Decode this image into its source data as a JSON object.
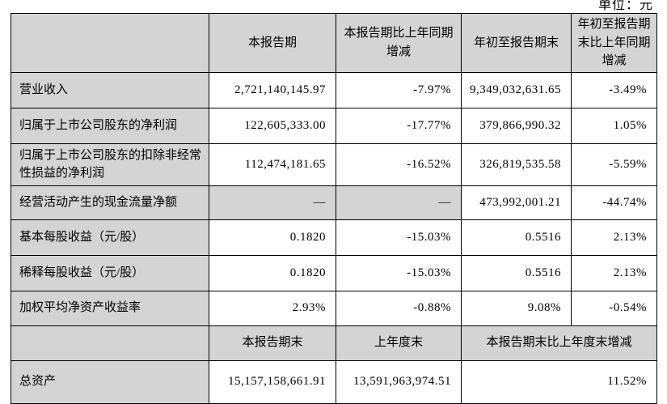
{
  "meta": {
    "unit_label": "单位：元"
  },
  "table": {
    "section1": {
      "headers": [
        "",
        "本报告期",
        "本报告期比上年同期增减",
        "年初至报告期末",
        "年初至报告期末比上年同期增减"
      ],
      "rows": [
        {
          "label": "营业收入",
          "cells": [
            "2,721,140,145.97",
            "-7.97%",
            "9,349,032,631.65",
            "-3.49%"
          ],
          "gray": []
        },
        {
          "label": "归属于上市公司股东的净利润",
          "cells": [
            "122,605,333.00",
            "-17.77%",
            "379,866,990.32",
            "1.05%"
          ],
          "gray": []
        },
        {
          "label": "归属于上市公司股东的扣除非经常性损益的净利润",
          "cells": [
            "112,474,181.65",
            "-16.52%",
            "326,819,535.58",
            "-5.59%"
          ],
          "gray": []
        },
        {
          "label": "经营活动产生的现金流量净额",
          "cells": [
            "—",
            "—",
            "473,992,001.21",
            "-44.74%"
          ],
          "gray": [
            0,
            1
          ]
        },
        {
          "label": "基本每股收益（元/股）",
          "cells": [
            "0.1820",
            "-15.03%",
            "0.5516",
            "2.13%"
          ],
          "gray": []
        },
        {
          "label": "稀释每股收益（元/股）",
          "cells": [
            "0.1820",
            "-15.03%",
            "0.5516",
            "2.13%"
          ],
          "gray": []
        },
        {
          "label": "加权平均净资产收益率",
          "cells": [
            "2.93%",
            "-0.88%",
            "9.08%",
            "-0.54%"
          ],
          "gray": []
        }
      ]
    },
    "section2": {
      "headers": [
        "",
        "本报告期末",
        "上年度末",
        "本报告期末比上年度末增减"
      ],
      "rows": [
        {
          "label": "总资产",
          "cells": [
            "15,157,158,661.91",
            "13,591,963,974.51",
            "11.52%"
          ]
        }
      ]
    }
  }
}
